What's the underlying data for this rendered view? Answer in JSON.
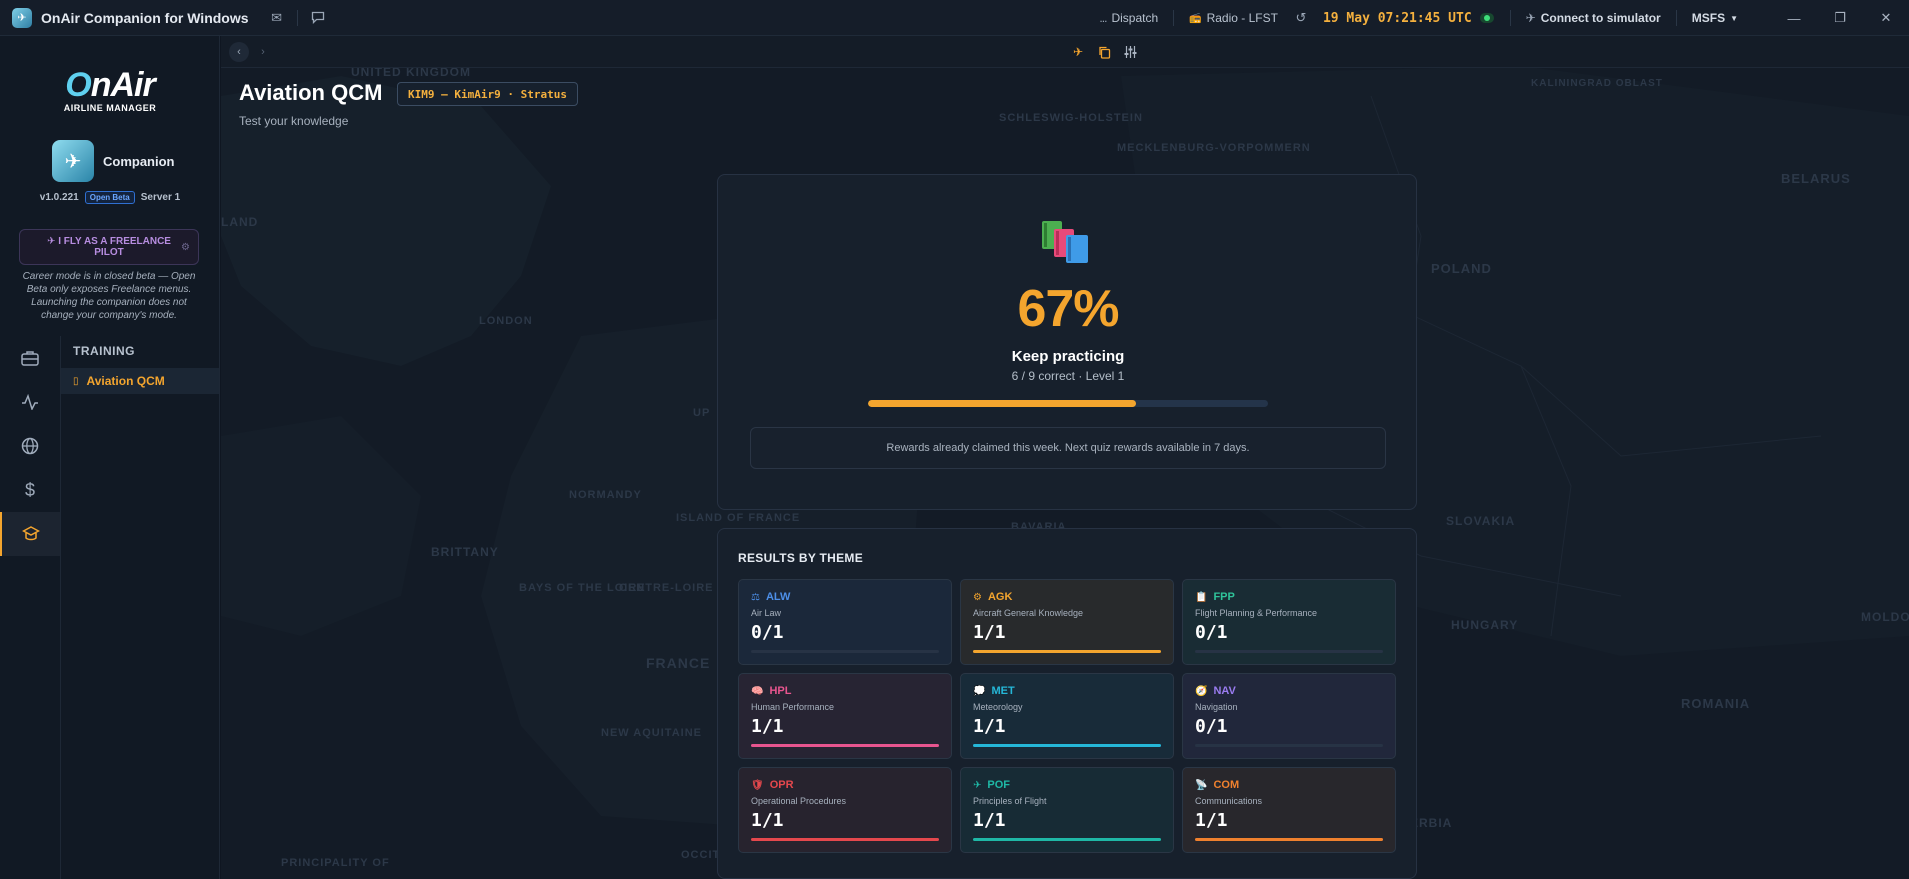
{
  "titlebar": {
    "title": "OnAir Companion for Windows",
    "dispatch": "Dispatch",
    "radio": "Radio - LFST",
    "clock": "19 May 07:21:45 UTC",
    "connect": "Connect to simulator",
    "sim": "MSFS"
  },
  "sidebar": {
    "brand_word": "OnAir",
    "brand_sub": "AIRLINE MANAGER",
    "companion": "Companion",
    "version": "v1.0.221",
    "beta": "Open Beta",
    "server": "Server 1",
    "freelance_label": "I FLY AS A FREELANCE PILOT",
    "career_note": "Career mode is in closed beta — Open Beta only exposes Freelance menus. Launching the companion does not change your company's mode.",
    "section": "TRAINING",
    "active_item": "Aviation QCM"
  },
  "page": {
    "title": "Aviation QCM",
    "airline": "KIM9 — KimAir9 · Stratus",
    "subtitle": "Test your knowledge"
  },
  "score": {
    "percent": "67%",
    "label": "Keep practicing",
    "detail": "6 / 9 correct · Level 1",
    "progress": 0.67,
    "reward_note": "Rewards already claimed this week. Next quiz rewards available in 7 days."
  },
  "themes": {
    "heading": "RESULTS BY THEME",
    "items": [
      {
        "code": "ALW",
        "name": "Air Law",
        "score": "0/1",
        "fraction": 0,
        "color": "#4d8fe8",
        "icon": "scales-icon",
        "emoji": "⚖"
      },
      {
        "code": "AGK",
        "name": "Aircraft General Knowledge",
        "score": "1/1",
        "fraction": 1,
        "color": "#f4a52e",
        "icon": "cog-icon",
        "emoji": "⚙"
      },
      {
        "code": "FPP",
        "name": "Flight Planning & Performance",
        "score": "0/1",
        "fraction": 0,
        "color": "#2fc49a",
        "icon": "clipboard-icon",
        "emoji": "📋"
      },
      {
        "code": "HPL",
        "name": "Human Performance",
        "score": "1/1",
        "fraction": 1,
        "color": "#e8558f",
        "icon": "brain-icon",
        "emoji": "🧠"
      },
      {
        "code": "MET",
        "name": "Meteorology",
        "score": "1/1",
        "fraction": 1,
        "color": "#25b7d8",
        "icon": "cloud-icon",
        "emoji": "💭"
      },
      {
        "code": "NAV",
        "name": "Navigation",
        "score": "0/1",
        "fraction": 0,
        "color": "#9a7cf0",
        "icon": "compass-icon",
        "emoji": "🧭"
      },
      {
        "code": "OPR",
        "name": "Operational Procedures",
        "score": "1/1",
        "fraction": 1,
        "color": "#e5484d",
        "icon": "shield-icon",
        "emoji": "🛡"
      },
      {
        "code": "POF",
        "name": "Principles of Flight",
        "score": "1/1",
        "fraction": 1,
        "color": "#1fb8a6",
        "icon": "plane-icon",
        "emoji": "✈"
      },
      {
        "code": "COM",
        "name": "Communications",
        "score": "1/1",
        "fraction": 1,
        "color": "#f0812e",
        "icon": "antenna-icon",
        "emoji": "📡"
      }
    ]
  },
  "map": {
    "labels": [
      "UNITED KINGDOM",
      "LONDON",
      "BRITTANY",
      "NORMANDY",
      "FRANCE",
      "BAYS OF THE LOIRE",
      "CENTRE-LOIRE VALLEY",
      "NEW AQUITAINE",
      "ISLAND OF FRANCE",
      "SCHLESWIG-HOLSTEIN",
      "MECKLENBURG-VORPOMMERN",
      "POLAND",
      "BELARUS",
      "SLOVAKIA",
      "HUNGARY",
      "ROMANIA",
      "SERBIA",
      "MOLDOVA",
      "KALININGRAD OBLAST",
      "BAVARIA",
      "OCCITANIA",
      "PRINCIPALITY OF",
      "UP",
      "LAND"
    ]
  }
}
